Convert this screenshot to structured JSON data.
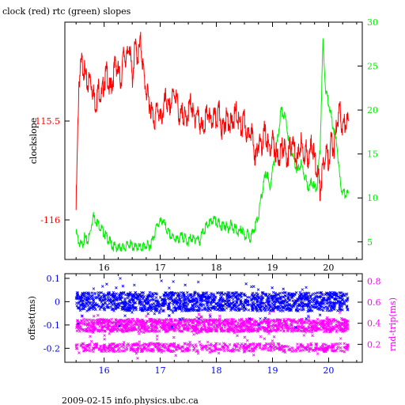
{
  "header": {
    "title": "clock (red) rtc (green) slopes"
  },
  "footer": {
    "text": "2009-02-15 info.physics.ubc.ca"
  },
  "colors": {
    "red": "#ff0000",
    "green": "#00ee00",
    "blue": "#0000ff",
    "magenta": "#ff00ff",
    "axis": "#000000"
  },
  "chart_data": [
    {
      "type": "line",
      "title": "clock (red) rtc (green) slopes",
      "xlabel": "",
      "ylabel": "clockslope",
      "y2label": "",
      "xlim": [
        15.3,
        20.6
      ],
      "ylim": [
        -116.2,
        -115.0
      ],
      "y2lim": [
        3,
        30
      ],
      "x_ticks": [
        "16",
        "17",
        "18",
        "19",
        "20"
      ],
      "y_ticks": [
        "-115.5",
        "-116"
      ],
      "y2_ticks": [
        "5",
        "10",
        "15",
        "20",
        "25",
        "30"
      ],
      "series": [
        {
          "axis": "left",
          "color": "#ff0000",
          "x": [
            15.5,
            15.55,
            15.6,
            15.65,
            15.7,
            15.75,
            15.8,
            15.85,
            15.9,
            15.95,
            16.0,
            16.05,
            16.1,
            16.15,
            16.2,
            16.25,
            16.3,
            16.35,
            16.4,
            16.45,
            16.5,
            16.55,
            16.6,
            16.65,
            16.7,
            16.75,
            16.8,
            16.85,
            16.9,
            16.95,
            17.0,
            17.05,
            17.1,
            17.15,
            17.2,
            17.25,
            17.3,
            17.35,
            17.4,
            17.45,
            17.5,
            17.55,
            17.6,
            17.65,
            17.7,
            17.75,
            17.8,
            17.85,
            17.9,
            17.95,
            18.0,
            18.05,
            18.1,
            18.15,
            18.2,
            18.25,
            18.3,
            18.35,
            18.4,
            18.45,
            18.5,
            18.55,
            18.6,
            18.65,
            18.7,
            18.75,
            18.8,
            18.85,
            18.9,
            18.95,
            19.0,
            19.05,
            19.1,
            19.15,
            19.2,
            19.25,
            19.3,
            19.35,
            19.4,
            19.45,
            19.5,
            19.55,
            19.6,
            19.65,
            19.7,
            19.75,
            19.8,
            19.85,
            19.9,
            19.95,
            20.0,
            20.05,
            20.1,
            20.15,
            20.2,
            20.25,
            20.3,
            20.35
          ],
          "y": [
            -115.95,
            -115.3,
            -115.2,
            -115.25,
            -115.32,
            -115.28,
            -115.35,
            -115.42,
            -115.33,
            -115.38,
            -115.3,
            -115.25,
            -115.35,
            -115.3,
            -115.2,
            -115.25,
            -115.3,
            -115.15,
            -115.2,
            -115.1,
            -115.3,
            -115.12,
            -115.18,
            -115.1,
            -115.25,
            -115.35,
            -115.4,
            -115.45,
            -115.5,
            -115.42,
            -115.5,
            -115.45,
            -115.38,
            -115.45,
            -115.4,
            -115.35,
            -115.4,
            -115.5,
            -115.45,
            -115.5,
            -115.45,
            -115.4,
            -115.5,
            -115.45,
            -115.5,
            -115.55,
            -115.5,
            -115.45,
            -115.52,
            -115.48,
            -115.5,
            -115.45,
            -115.55,
            -115.5,
            -115.48,
            -115.52,
            -115.5,
            -115.45,
            -115.5,
            -115.55,
            -115.48,
            -115.6,
            -115.52,
            -115.6,
            -115.7,
            -115.6,
            -115.65,
            -115.55,
            -115.6,
            -115.65,
            -115.6,
            -115.65,
            -115.7,
            -115.65,
            -115.62,
            -115.7,
            -115.65,
            -115.6,
            -115.65,
            -115.7,
            -115.6,
            -115.68,
            -115.65,
            -115.7,
            -115.6,
            -115.7,
            -115.75,
            -115.85,
            -115.72,
            -115.65,
            -115.7,
            -115.6,
            -115.65,
            -115.5,
            -115.45,
            -115.55,
            -115.5,
            -115.5
          ]
        },
        {
          "axis": "right",
          "color": "#00ee00",
          "x": [
            15.5,
            15.55,
            15.6,
            15.65,
            15.7,
            15.75,
            15.8,
            15.85,
            15.9,
            15.95,
            16.0,
            16.05,
            16.1,
            16.15,
            16.2,
            16.25,
            16.3,
            16.35,
            16.4,
            16.45,
            16.5,
            16.55,
            16.6,
            16.65,
            16.7,
            16.75,
            16.8,
            16.85,
            16.9,
            16.95,
            17.0,
            17.05,
            17.1,
            17.15,
            17.2,
            17.25,
            17.3,
            17.35,
            17.4,
            17.45,
            17.5,
            17.55,
            17.6,
            17.65,
            17.7,
            17.75,
            17.8,
            17.85,
            17.9,
            17.95,
            18.0,
            18.05,
            18.1,
            18.15,
            18.2,
            18.25,
            18.3,
            18.35,
            18.4,
            18.45,
            18.5,
            18.55,
            18.6,
            18.65,
            18.7,
            18.75,
            18.8,
            18.85,
            18.9,
            18.95,
            19.0,
            19.05,
            19.1,
            19.15,
            19.2,
            19.25,
            19.3,
            19.35,
            19.4,
            19.45,
            19.5,
            19.55,
            19.6,
            19.65,
            19.7,
            19.75,
            19.8,
            19.85,
            19.9,
            19.95,
            20.0,
            20.05,
            20.1,
            20.15,
            20.2,
            20.25,
            20.3,
            20.35
          ],
          "y": [
            6,
            5,
            4.5,
            5.5,
            5,
            6,
            8,
            7.5,
            7,
            6.5,
            6,
            5.5,
            5,
            4.5,
            4.5,
            4.2,
            4.5,
            4.3,
            4.5,
            4.8,
            4.5,
            4.3,
            4.5,
            4.3,
            4.5,
            4.6,
            4.5,
            5,
            6,
            7,
            7.2,
            7.5,
            6.5,
            6,
            5.5,
            5.5,
            5.2,
            5.5,
            5.6,
            5.3,
            5,
            5.5,
            5.2,
            5.5,
            5,
            6,
            6.5,
            7,
            7.2,
            7.5,
            7.2,
            7,
            6.8,
            7,
            6.5,
            7,
            6.5,
            6.5,
            6,
            6.5,
            5.5,
            6,
            5.5,
            6,
            7,
            8,
            10,
            12,
            13,
            11,
            13,
            15,
            17,
            20,
            19.5,
            18.5,
            16,
            15,
            14,
            13,
            14,
            13,
            12,
            11,
            12,
            11,
            11.5,
            16,
            28,
            22,
            21,
            19,
            17.5,
            16,
            12,
            10.5,
            10.5,
            10.5
          ]
        }
      ]
    },
    {
      "type": "scatter",
      "xlabel": "",
      "ylabel": "offset(ms)",
      "y2label": "rnd-trip(ms)",
      "xlim": [
        15.3,
        20.6
      ],
      "ylim": [
        -0.26,
        0.12
      ],
      "y2lim": [
        0.03,
        0.87
      ],
      "x_ticks": [
        "16",
        "17",
        "18",
        "19",
        "20"
      ],
      "y_ticks": [
        "0.1",
        "0",
        "-0.1",
        "-0.2"
      ],
      "y2_ticks": [
        "0.8",
        "0.6",
        "0.4",
        "0.2"
      ],
      "series": [
        {
          "axis": "left",
          "color": "#0000ff",
          "x_range": [
            15.5,
            20.35
          ],
          "center": 0.0,
          "spread": 0.04
        },
        {
          "axis": "right",
          "color": "#ff00ff",
          "x_range": [
            15.5,
            20.35
          ],
          "center": 0.25,
          "spread": 0.1
        }
      ]
    }
  ]
}
